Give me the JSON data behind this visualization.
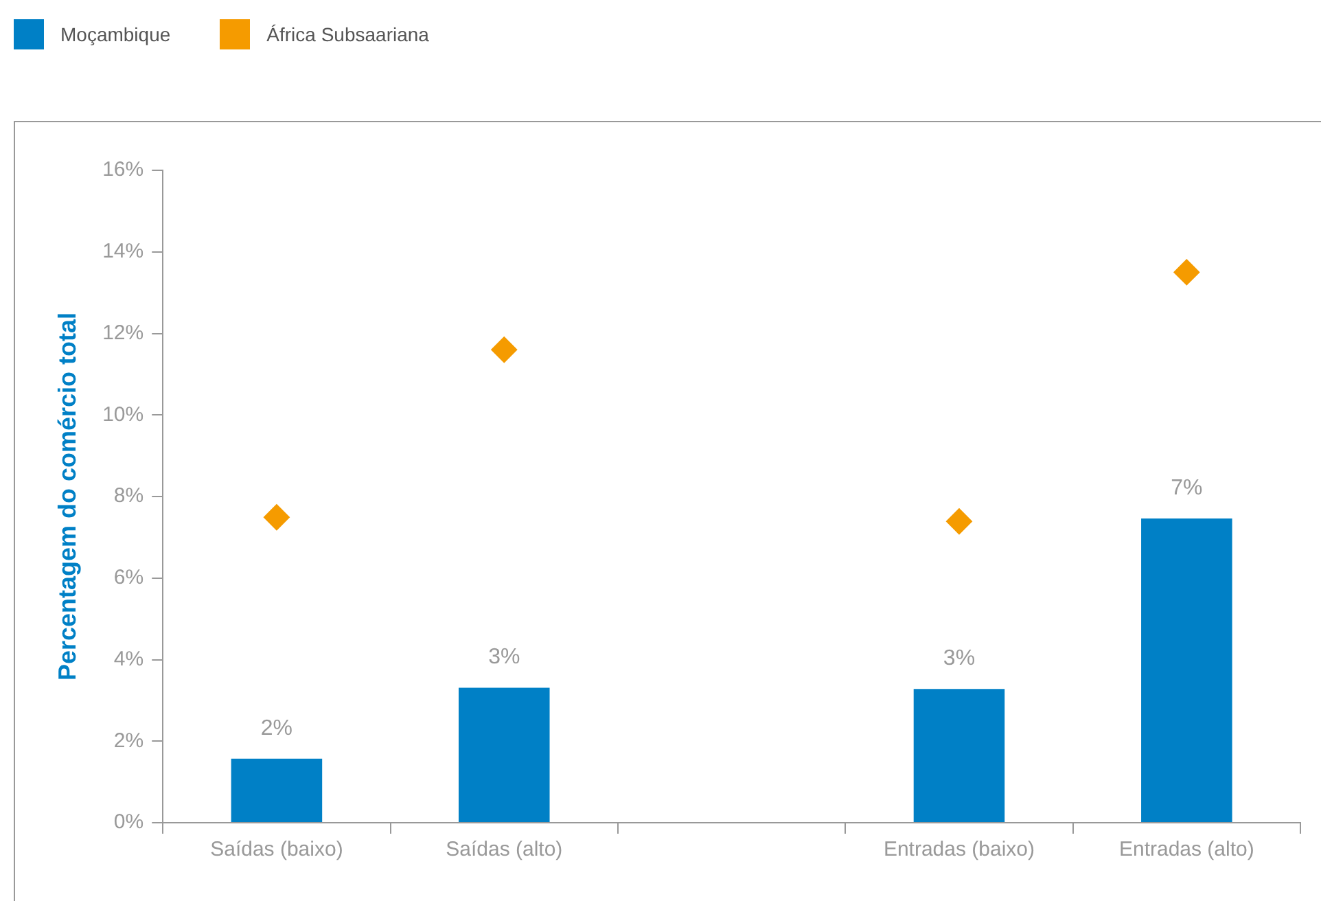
{
  "chart_data": {
    "type": "bar",
    "ylabel": "Percentagem do comércio total",
    "categories": [
      "Saídas (baixo)",
      "Saídas (alto)",
      null,
      "Entradas (baixo)",
      "Entradas (alto)"
    ],
    "series": [
      {
        "name": "Moçambique",
        "color": "#0080c6",
        "values": [
          1.57,
          3.31,
          null,
          3.28,
          7.46
        ],
        "value_labels": [
          "2%",
          "3%",
          null,
          "3%",
          "7%"
        ]
      },
      {
        "name": "África Subsaariana",
        "type": "scatter",
        "marker": "diamond",
        "color": "#f59b00",
        "values": [
          7.49,
          11.6,
          null,
          7.39,
          13.5
        ]
      }
    ],
    "ylim": [
      0,
      16
    ],
    "yticks": [
      {
        "value": 0,
        "label": "0%"
      },
      {
        "value": 2,
        "label": "2%"
      },
      {
        "value": 4,
        "label": "4%"
      },
      {
        "value": 6,
        "label": "6%"
      },
      {
        "value": 8,
        "label": "8%"
      },
      {
        "value": 10,
        "label": "10%"
      },
      {
        "value": 12,
        "label": "12%"
      },
      {
        "value": 14,
        "label": "14%"
      },
      {
        "value": 16,
        "label": "16%"
      }
    ],
    "grid": false,
    "legend": "top left"
  }
}
